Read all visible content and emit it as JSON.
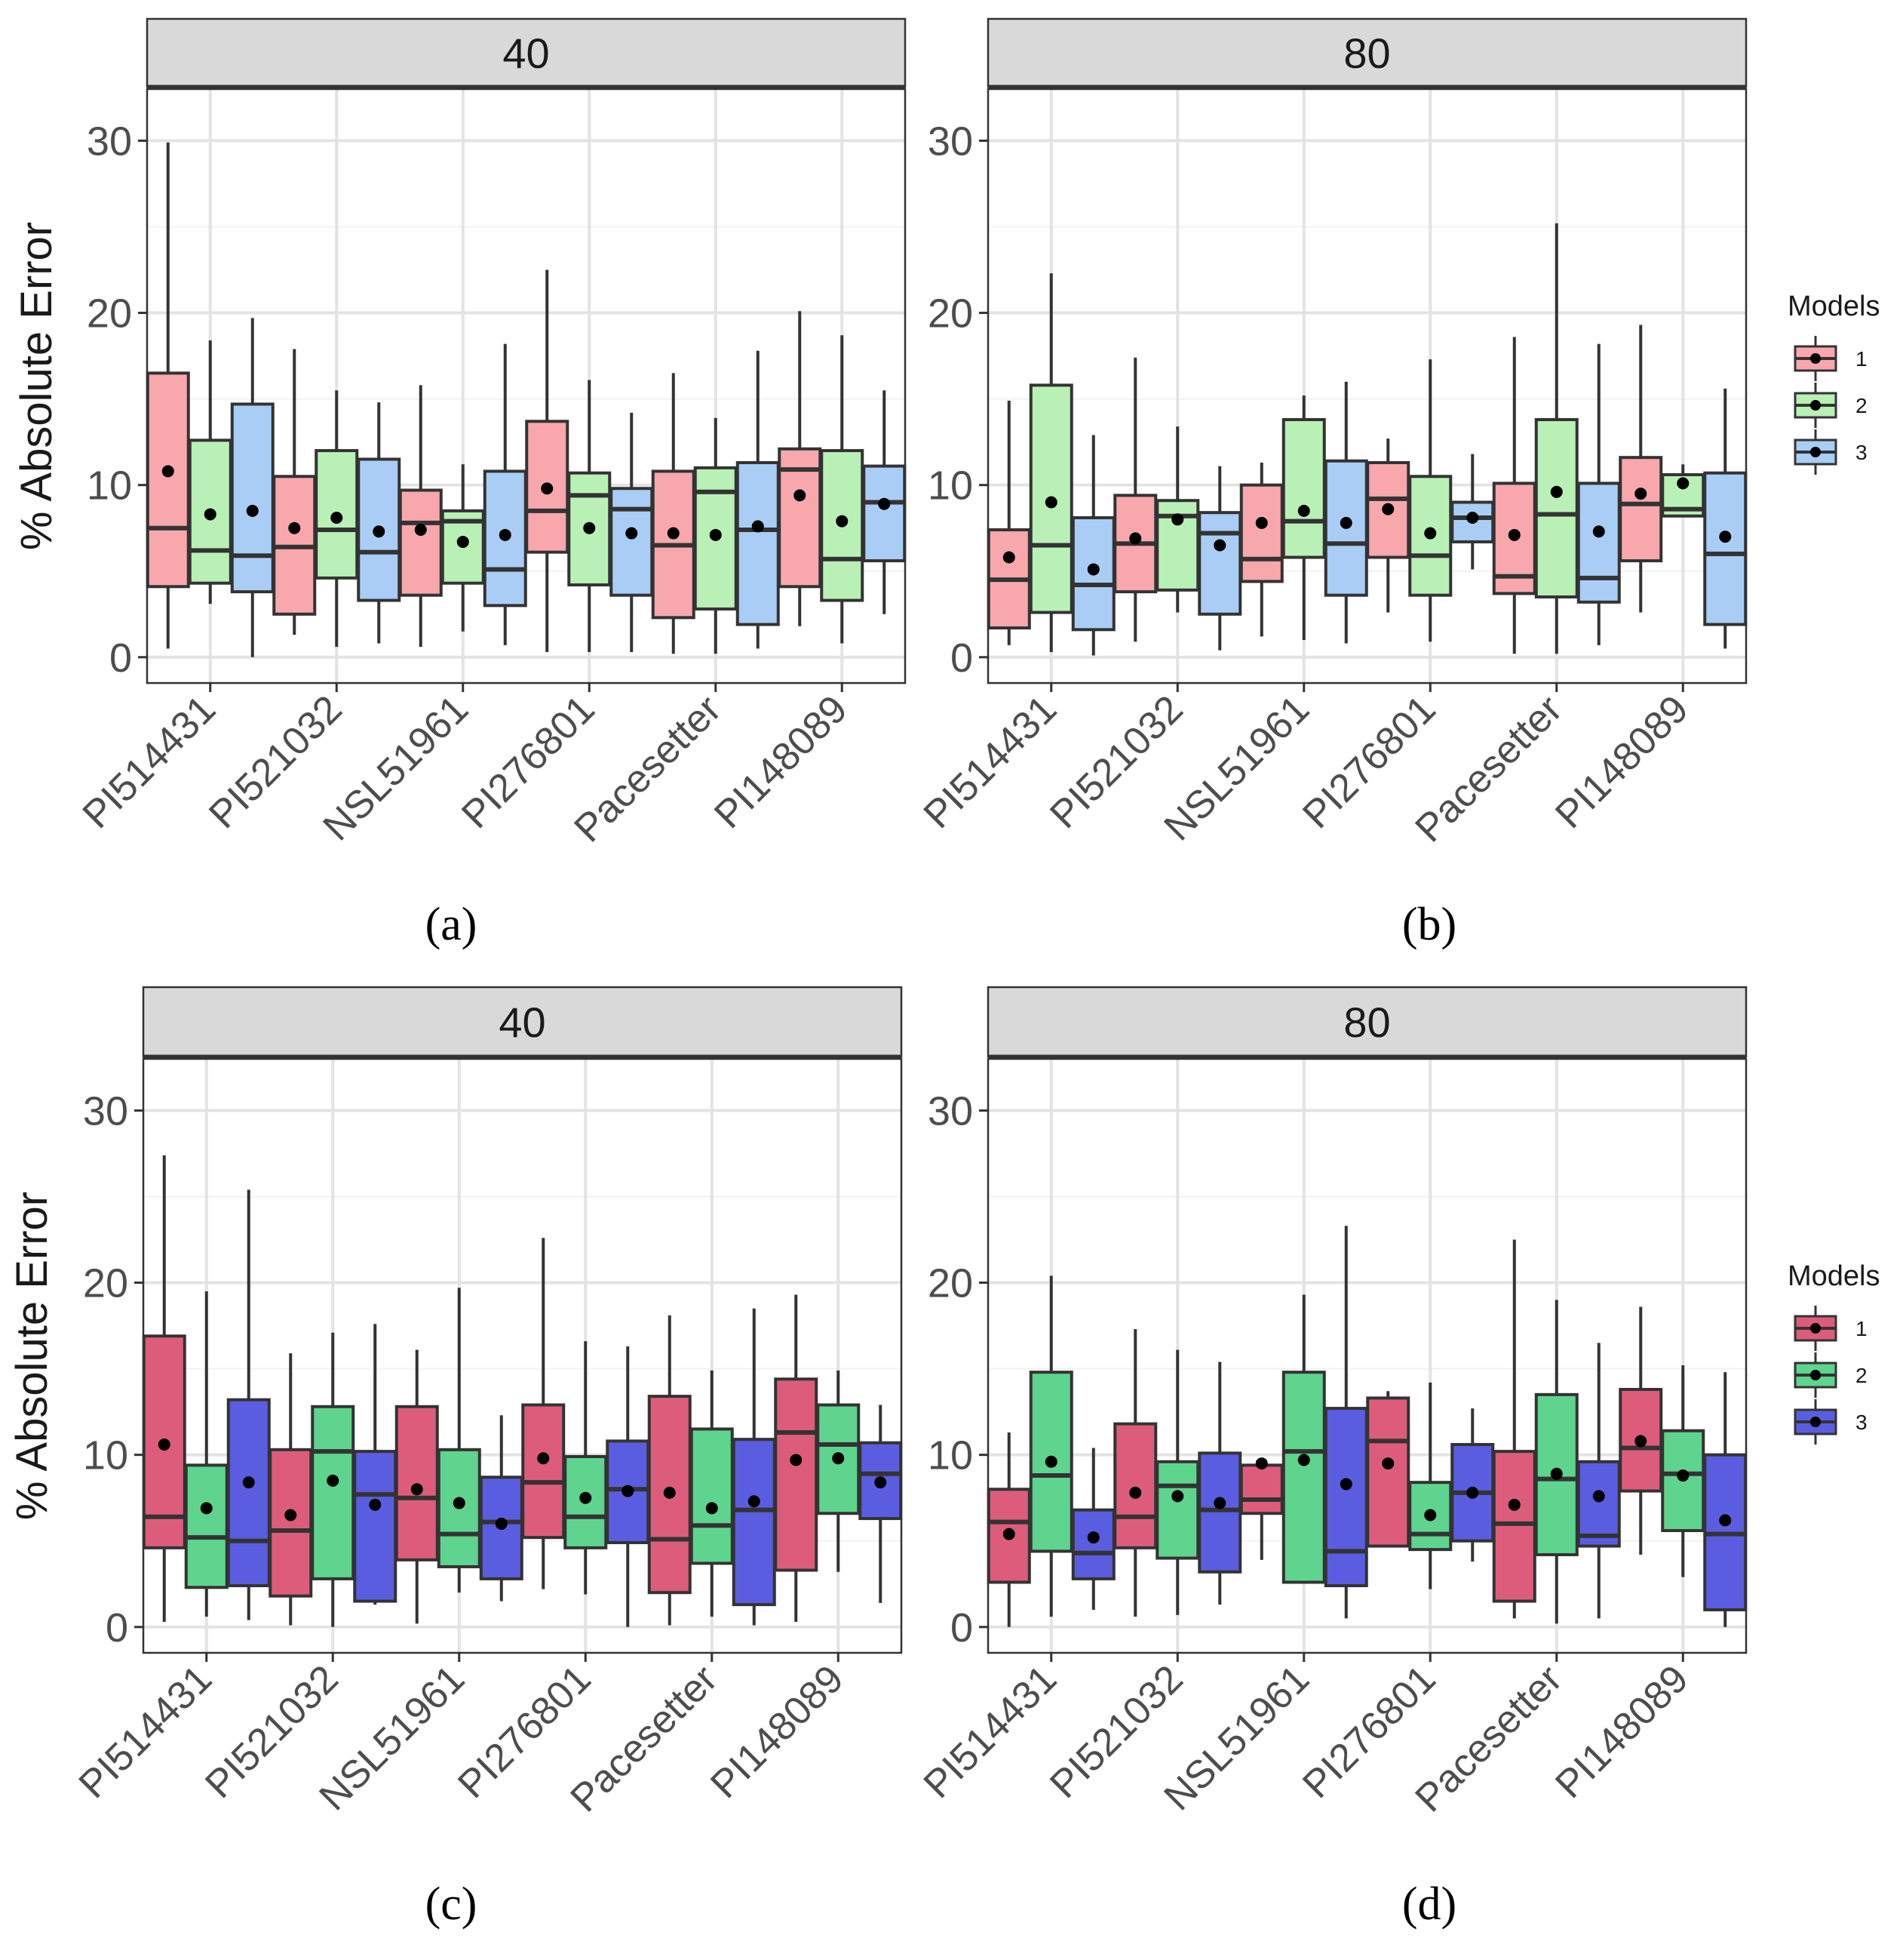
{
  "chart_data": [
    {
      "panel_label": "(a)",
      "type": "box",
      "facet_title": "40",
      "ylabel": "% Absolute Error",
      "categories": [
        "PI514431",
        "PI521032",
        "NSL51961",
        "PI276801",
        "Pacesetter",
        "PI148089"
      ],
      "ylim": [
        -1.5,
        33
      ],
      "yticks": [
        0,
        10,
        20,
        30
      ],
      "legend": {
        "title": "Models",
        "entries": [
          "1",
          "2",
          "3"
        ],
        "position": "right",
        "colors": [
          "#f8a7ad",
          "#b9f0b6",
          "#a9cdf5"
        ]
      },
      "series": [
        {
          "name": "1",
          "boxes": [
            {
              "min": 0.5,
              "q1": 4.1,
              "median": 7.5,
              "q3": 16.5,
              "max": 29.9,
              "mean": 10.8
            },
            {
              "min": 1.3,
              "q1": 2.5,
              "median": 6.4,
              "q3": 10.5,
              "max": 17.9,
              "mean": 7.5
            },
            {
              "min": 0.6,
              "q1": 3.6,
              "median": 7.8,
              "q3": 9.7,
              "max": 15.8,
              "mean": 7.4
            },
            {
              "min": 0.3,
              "q1": 6.1,
              "median": 8.5,
              "q3": 13.7,
              "max": 22.5,
              "mean": 9.8
            },
            {
              "min": 0.2,
              "q1": 2.3,
              "median": 6.5,
              "q3": 10.8,
              "max": 16.5,
              "mean": 7.2
            },
            {
              "min": 1.8,
              "q1": 4.1,
              "median": 10.9,
              "q3": 12.1,
              "max": 20.1,
              "mean": 9.4
            }
          ]
        },
        {
          "name": "2",
          "boxes": [
            {
              "min": 3.1,
              "q1": 4.3,
              "median": 6.2,
              "q3": 12.6,
              "max": 18.4,
              "mean": 8.3
            },
            {
              "min": 0.6,
              "q1": 4.6,
              "median": 7.4,
              "q3": 12.0,
              "max": 15.5,
              "mean": 8.1
            },
            {
              "min": 1.5,
              "q1": 4.3,
              "median": 7.9,
              "q3": 8.5,
              "max": 11.2,
              "mean": 6.7
            },
            {
              "min": 0.3,
              "q1": 4.2,
              "median": 9.4,
              "q3": 10.7,
              "max": 16.1,
              "mean": 7.5
            },
            {
              "min": 0.2,
              "q1": 2.8,
              "median": 9.6,
              "q3": 11.0,
              "max": 13.9,
              "mean": 7.1
            },
            {
              "min": 0.8,
              "q1": 3.3,
              "median": 5.7,
              "q3": 12.0,
              "max": 18.7,
              "mean": 7.9
            }
          ]
        },
        {
          "name": "3",
          "boxes": [
            {
              "min": 0.0,
              "q1": 3.8,
              "median": 5.9,
              "q3": 14.7,
              "max": 19.7,
              "mean": 8.5
            },
            {
              "min": 0.8,
              "q1": 3.3,
              "median": 6.1,
              "q3": 11.5,
              "max": 14.8,
              "mean": 7.3
            },
            {
              "min": 0.7,
              "q1": 3.0,
              "median": 5.1,
              "q3": 10.8,
              "max": 18.2,
              "mean": 7.1
            },
            {
              "min": 0.3,
              "q1": 3.6,
              "median": 8.6,
              "q3": 9.8,
              "max": 14.2,
              "mean": 7.2
            },
            {
              "min": 0.5,
              "q1": 1.9,
              "median": 7.4,
              "q3": 11.3,
              "max": 17.8,
              "mean": 7.6
            },
            {
              "min": 2.5,
              "q1": 5.6,
              "median": 9.0,
              "q3": 11.1,
              "max": 15.5,
              "mean": 8.9
            }
          ]
        }
      ]
    },
    {
      "panel_label": "(b)",
      "type": "box",
      "facet_title": "80",
      "ylabel": "",
      "categories": [
        "PI514431",
        "PI521032",
        "NSL51961",
        "PI276801",
        "Pacesetter",
        "PI148089"
      ],
      "ylim": [
        -1.5,
        33
      ],
      "yticks": [
        0,
        10,
        20,
        30
      ],
      "legend": {
        "title": "Models",
        "entries": [
          "1",
          "2",
          "3"
        ],
        "position": "right",
        "colors": [
          "#f8a7ad",
          "#b9f0b6",
          "#a9cdf5"
        ]
      },
      "series": [
        {
          "name": "1",
          "boxes": [
            {
              "min": 0.7,
              "q1": 1.7,
              "median": 4.5,
              "q3": 7.4,
              "max": 14.9,
              "mean": 5.8
            },
            {
              "min": 0.9,
              "q1": 3.8,
              "median": 6.6,
              "q3": 9.4,
              "max": 17.4,
              "mean": 6.9
            },
            {
              "min": 1.2,
              "q1": 4.4,
              "median": 5.7,
              "q3": 10.0,
              "max": 11.3,
              "mean": 7.8
            },
            {
              "min": 2.6,
              "q1": 5.8,
              "median": 9.2,
              "q3": 11.3,
              "max": 12.7,
              "mean": 8.6
            },
            {
              "min": 0.2,
              "q1": 3.7,
              "median": 4.7,
              "q3": 10.1,
              "max": 18.6,
              "mean": 7.1
            },
            {
              "min": 2.6,
              "q1": 5.6,
              "median": 8.9,
              "q3": 11.6,
              "max": 19.3,
              "mean": 9.5
            }
          ]
        },
        {
          "name": "2",
          "boxes": [
            {
              "min": 0.3,
              "q1": 2.6,
              "median": 6.5,
              "q3": 15.8,
              "max": 22.3,
              "mean": 9.0
            },
            {
              "min": 2.6,
              "q1": 3.9,
              "median": 8.2,
              "q3": 9.1,
              "max": 13.4,
              "mean": 8.0
            },
            {
              "min": 1.0,
              "q1": 5.8,
              "median": 7.9,
              "q3": 13.8,
              "max": 15.2,
              "mean": 8.5
            },
            {
              "min": 0.9,
              "q1": 3.6,
              "median": 5.9,
              "q3": 10.5,
              "max": 17.3,
              "mean": 7.2
            },
            {
              "min": 0.2,
              "q1": 3.5,
              "median": 8.3,
              "q3": 13.8,
              "max": 25.2,
              "mean": 9.6
            },
            {
              "min": 8.2,
              "q1": 8.2,
              "median": 8.6,
              "q3": 10.6,
              "max": 11.2,
              "mean": 10.1
            }
          ]
        },
        {
          "name": "3",
          "boxes": [
            {
              "min": 0.1,
              "q1": 1.6,
              "median": 4.2,
              "q3": 8.1,
              "max": 12.9,
              "mean": 5.1
            },
            {
              "min": 0.4,
              "q1": 2.5,
              "median": 7.2,
              "q3": 8.4,
              "max": 11.1,
              "mean": 6.5
            },
            {
              "min": 0.8,
              "q1": 3.6,
              "median": 6.6,
              "q3": 11.4,
              "max": 16.0,
              "mean": 7.8
            },
            {
              "min": 5.1,
              "q1": 6.7,
              "median": 8.1,
              "q3": 9.0,
              "max": 11.8,
              "mean": 8.1
            },
            {
              "min": 0.7,
              "q1": 3.2,
              "median": 4.6,
              "q3": 10.1,
              "max": 18.2,
              "mean": 7.3
            },
            {
              "min": 0.5,
              "q1": 1.9,
              "median": 6.0,
              "q3": 10.7,
              "max": 15.6,
              "mean": 7.0
            }
          ]
        }
      ]
    },
    {
      "panel_label": "(c)",
      "type": "box",
      "facet_title": "40",
      "ylabel": "% Absolute Error",
      "categories": [
        "PI514431",
        "PI521032",
        "NSL51961",
        "PI276801",
        "Pacesetter",
        "PI148089"
      ],
      "ylim": [
        -1.5,
        33
      ],
      "yticks": [
        0,
        10,
        20,
        30
      ],
      "legend": {
        "title": "Models",
        "entries": [
          "1",
          "2",
          "3"
        ],
        "position": "right",
        "colors": [
          "#de5c7b",
          "#5ed48e",
          "#5b5de0"
        ]
      },
      "series": [
        {
          "name": "1",
          "boxes": [
            {
              "min": 0.3,
              "q1": 4.6,
              "median": 6.4,
              "q3": 16.9,
              "max": 27.4,
              "mean": 10.6
            },
            {
              "min": 0.1,
              "q1": 1.8,
              "median": 5.6,
              "q3": 10.3,
              "max": 15.9,
              "mean": 6.5
            },
            {
              "min": 0.2,
              "q1": 3.9,
              "median": 7.5,
              "q3": 12.8,
              "max": 16.1,
              "mean": 8.0
            },
            {
              "min": 2.2,
              "q1": 5.2,
              "median": 8.4,
              "q3": 12.9,
              "max": 22.6,
              "mean": 9.8
            },
            {
              "min": 0.1,
              "q1": 2.0,
              "median": 5.1,
              "q3": 13.4,
              "max": 18.1,
              "mean": 7.8
            },
            {
              "min": 0.3,
              "q1": 3.3,
              "median": 11.3,
              "q3": 14.4,
              "max": 19.3,
              "mean": 9.7
            }
          ]
        },
        {
          "name": "2",
          "boxes": [
            {
              "min": 0.6,
              "q1": 2.3,
              "median": 5.2,
              "q3": 9.4,
              "max": 19.5,
              "mean": 6.9
            },
            {
              "min": 0.0,
              "q1": 2.8,
              "median": 10.2,
              "q3": 12.8,
              "max": 17.1,
              "mean": 8.5
            },
            {
              "min": 2.0,
              "q1": 3.5,
              "median": 5.4,
              "q3": 10.3,
              "max": 19.7,
              "mean": 7.2
            },
            {
              "min": 1.9,
              "q1": 4.6,
              "median": 6.4,
              "q3": 9.9,
              "max": 16.6,
              "mean": 7.5
            },
            {
              "min": 0.6,
              "q1": 3.7,
              "median": 5.9,
              "q3": 11.5,
              "max": 14.9,
              "mean": 6.9
            },
            {
              "min": 3.2,
              "q1": 6.6,
              "median": 10.6,
              "q3": 12.9,
              "max": 14.9,
              "mean": 9.8
            }
          ]
        },
        {
          "name": "3",
          "boxes": [
            {
              "min": 0.4,
              "q1": 2.4,
              "median": 5.0,
              "q3": 13.2,
              "max": 25.4,
              "mean": 8.4
            },
            {
              "min": 1.3,
              "q1": 1.5,
              "median": 7.7,
              "q3": 10.2,
              "max": 17.6,
              "mean": 7.1
            },
            {
              "min": 1.5,
              "q1": 2.8,
              "median": 6.1,
              "q3": 8.7,
              "max": 12.3,
              "mean": 6.0
            },
            {
              "min": 0.0,
              "q1": 4.9,
              "median": 8.0,
              "q3": 10.8,
              "max": 16.3,
              "mean": 7.9
            },
            {
              "min": 0.1,
              "q1": 1.3,
              "median": 6.8,
              "q3": 10.9,
              "max": 18.5,
              "mean": 7.3
            },
            {
              "min": 1.4,
              "q1": 6.3,
              "median": 8.9,
              "q3": 10.7,
              "max": 12.9,
              "mean": 8.4
            }
          ]
        }
      ]
    },
    {
      "panel_label": "(d)",
      "type": "box",
      "facet_title": "80",
      "ylabel": "",
      "categories": [
        "PI514431",
        "PI521032",
        "NSL51961",
        "PI276801",
        "Pacesetter",
        "PI148089"
      ],
      "ylim": [
        -1.5,
        33
      ],
      "yticks": [
        0,
        10,
        20,
        30
      ],
      "legend": {
        "title": "Models",
        "entries": [
          "1",
          "2",
          "3"
        ],
        "position": "right",
        "colors": [
          "#de5c7b",
          "#5ed48e",
          "#5b5de0"
        ]
      },
      "series": [
        {
          "name": "1",
          "boxes": [
            {
              "min": 0.0,
              "q1": 2.6,
              "median": 6.1,
              "q3": 8.0,
              "max": 11.3,
              "mean": 5.4
            },
            {
              "min": 0.6,
              "q1": 4.6,
              "median": 6.4,
              "q3": 11.8,
              "max": 17.3,
              "mean": 7.8
            },
            {
              "min": 3.9,
              "q1": 6.6,
              "median": 7.4,
              "q3": 9.4,
              "max": 9.5,
              "mean": 9.5
            },
            {
              "min": 4.7,
              "q1": 4.7,
              "median": 10.8,
              "q3": 13.3,
              "max": 13.7,
              "mean": 9.5
            },
            {
              "min": 0.5,
              "q1": 1.5,
              "median": 6.0,
              "q3": 10.2,
              "max": 22.5,
              "mean": 7.1
            },
            {
              "min": 4.2,
              "q1": 7.9,
              "median": 10.4,
              "q3": 13.8,
              "max": 18.6,
              "mean": 10.8
            }
          ]
        },
        {
          "name": "2",
          "boxes": [
            {
              "min": 0.6,
              "q1": 4.4,
              "median": 8.8,
              "q3": 14.8,
              "max": 20.4,
              "mean": 9.6
            },
            {
              "min": 0.7,
              "q1": 4.0,
              "median": 8.2,
              "q3": 9.6,
              "max": 16.1,
              "mean": 7.6
            },
            {
              "min": 2.6,
              "q1": 2.6,
              "median": 10.2,
              "q3": 14.8,
              "max": 19.3,
              "mean": 9.7
            },
            {
              "min": 2.2,
              "q1": 4.5,
              "median": 5.4,
              "q3": 8.4,
              "max": 14.2,
              "mean": 6.5
            },
            {
              "min": 0.2,
              "q1": 4.2,
              "median": 8.6,
              "q3": 13.5,
              "max": 19.0,
              "mean": 8.9
            },
            {
              "min": 2.9,
              "q1": 5.6,
              "median": 8.9,
              "q3": 11.4,
              "max": 15.2,
              "mean": 8.8
            }
          ]
        },
        {
          "name": "3",
          "boxes": [
            {
              "min": 1.0,
              "q1": 2.8,
              "median": 4.3,
              "q3": 6.8,
              "max": 10.4,
              "mean": 5.2
            },
            {
              "min": 1.3,
              "q1": 3.2,
              "median": 6.8,
              "q3": 10.1,
              "max": 15.4,
              "mean": 7.2
            },
            {
              "min": 0.5,
              "q1": 2.4,
              "median": 4.4,
              "q3": 12.7,
              "max": 23.3,
              "mean": 8.3
            },
            {
              "min": 3.8,
              "q1": 5.0,
              "median": 7.8,
              "q3": 10.6,
              "max": 12.7,
              "mean": 7.8
            },
            {
              "min": 0.5,
              "q1": 4.7,
              "median": 5.3,
              "q3": 9.6,
              "max": 16.5,
              "mean": 7.6
            },
            {
              "min": 0.0,
              "q1": 1.0,
              "median": 5.4,
              "q3": 10.0,
              "max": 14.8,
              "mean": 6.2
            }
          ]
        }
      ]
    }
  ]
}
